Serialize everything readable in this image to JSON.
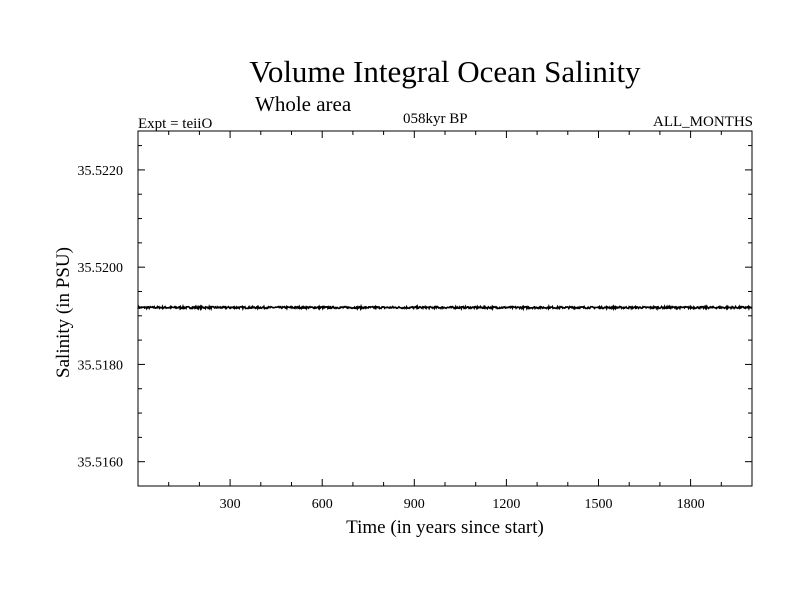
{
  "chart_data": {
    "type": "line",
    "title": "Volume Integral Ocean Salinity",
    "subtitle": "Whole area",
    "annotations": {
      "left": "Expt = teiiO",
      "center": "058kyr BP",
      "right": "ALL_MONTHS"
    },
    "xlabel": "Time (in years since start)",
    "ylabel": "Salinity (in PSU)",
    "xlim": [
      0,
      2000
    ],
    "ylim": [
      35.5155,
      35.5228
    ],
    "xticks": [
      300,
      600,
      900,
      1200,
      1500,
      1800
    ],
    "xtick_labels": [
      "300",
      "600",
      "900",
      "1200",
      "1500",
      "1800"
    ],
    "yticks": [
      35.516,
      35.518,
      35.52,
      35.522
    ],
    "ytick_labels": [
      "35.5160",
      "35.5180",
      "35.5200",
      "35.5220"
    ],
    "grid": false,
    "series": [
      {
        "x_start": 0,
        "x_end": 2000,
        "mean": 35.51917,
        "amplitude": 2e-05
      }
    ]
  }
}
